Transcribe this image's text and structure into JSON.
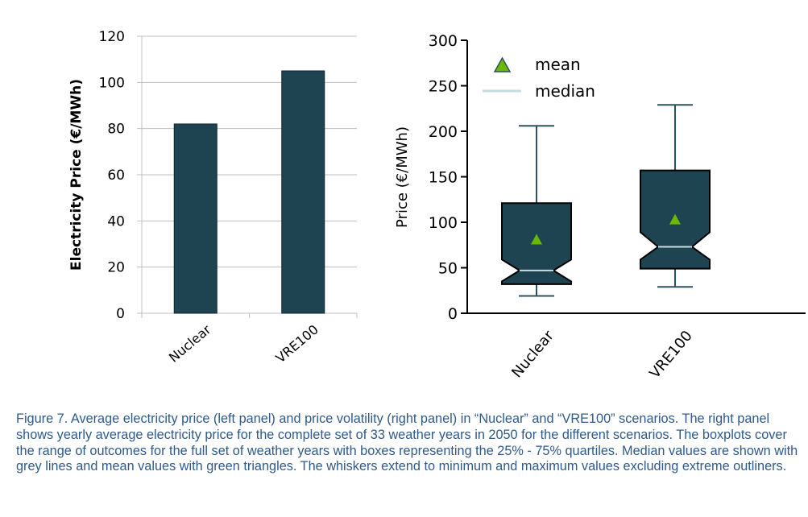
{
  "chart_data": [
    {
      "type": "bar",
      "categories": [
        "Nuclear",
        "VRE100"
      ],
      "values": [
        82,
        105
      ],
      "ylabel": "Electricity Price (€/MWh)",
      "ylim": [
        0,
        120
      ],
      "yticks": [
        0,
        20,
        40,
        60,
        80,
        100,
        120
      ],
      "grid": true,
      "bar_color": "#1e4452"
    },
    {
      "type": "boxplot",
      "categories": [
        "Nuclear",
        "VRE100"
      ],
      "boxes": [
        {
          "whisker_low": 19,
          "q1": 32,
          "median": 47,
          "q3": 121,
          "whisker_high": 206,
          "mean": 81,
          "notch_low": 35,
          "notch_high": 59
        },
        {
          "whisker_low": 29,
          "q1": 49,
          "median": 73,
          "q3": 157,
          "whisker_high": 229,
          "mean": 103,
          "notch_low": 59,
          "notch_high": 89
        }
      ],
      "ylabel": "Price (€/MWh)",
      "ylim": [
        0,
        300
      ],
      "yticks": [
        0,
        50,
        100,
        150,
        200,
        250,
        300
      ],
      "legend": [
        "mean",
        "median"
      ],
      "legend_position": "top-left",
      "grid": false,
      "box_color": "#1e4452",
      "mean_color": "#6ab800",
      "median_color": "#c8dbe0"
    }
  ],
  "caption": "Figure 7. Average electricity price (left panel) and price volatility (right panel) in “Nuclear” and “VRE100” scenarios. The right panel shows yearly average electricity price for the complete set of 33 weather years in 2050 for the different scenarios. The boxplots cover the range of outcomes for the full set of weather years with boxes representing the 25% - 75% quartiles. Median values are shown with grey lines and mean values with green triangles. The whiskers extend to minimum and maximum values excluding extreme outliners."
}
